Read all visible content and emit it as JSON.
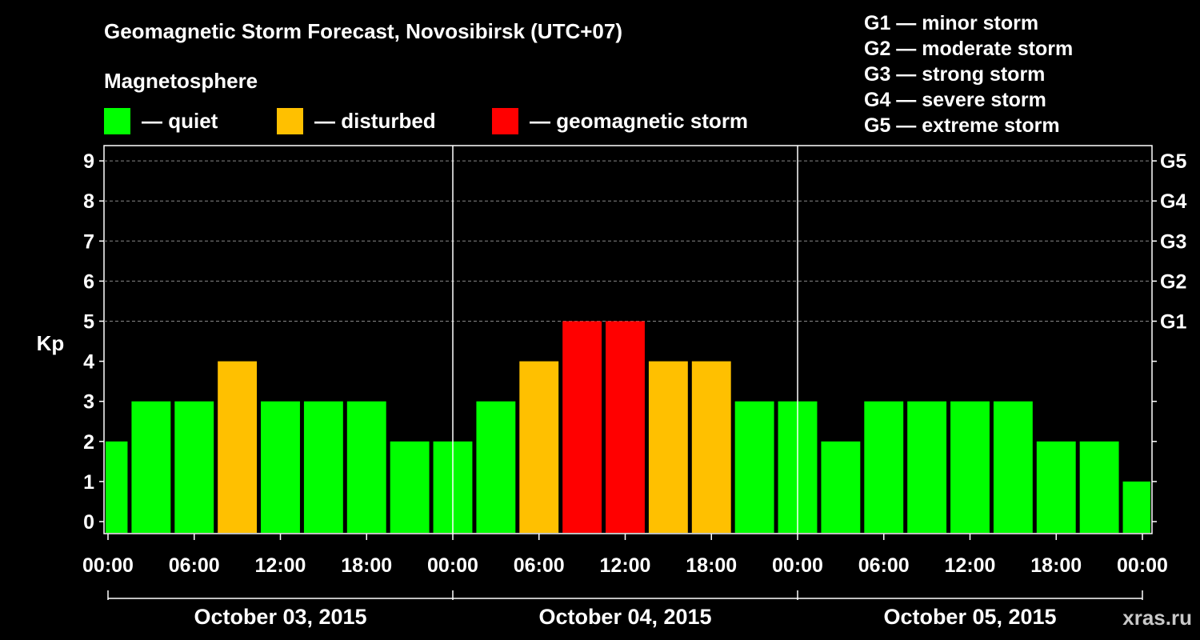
{
  "title": "Geomagnetic Storm Forecast, Novosibirsk (UTC+07)",
  "magnetosphere_label": "Magnetosphere",
  "legend": [
    {
      "label": "— quiet",
      "color": "#00ff00"
    },
    {
      "label": "— disturbed",
      "color": "#ffc000"
    },
    {
      "label": "— geomagnetic storm",
      "color": "#ff0000"
    }
  ],
  "storm_scale": [
    "G1 — minor storm",
    "G2 — moderate storm",
    "G3 — strong storm",
    "G4 — severe storm",
    "G5 — extreme storm"
  ],
  "watermark": "xras.ru",
  "chart_data": {
    "type": "bar",
    "ylabel": "Kp",
    "ylim": [
      0,
      9
    ],
    "y_ticks": [
      0,
      1,
      2,
      3,
      4,
      5,
      6,
      7,
      8,
      9
    ],
    "right_axis_labels": [
      {
        "kp": 5,
        "label": "G1"
      },
      {
        "kp": 6,
        "label": "G2"
      },
      {
        "kp": 7,
        "label": "G3"
      },
      {
        "kp": 8,
        "label": "G4"
      },
      {
        "kp": 9,
        "label": "G5"
      }
    ],
    "x_tick_labels": [
      "00:00",
      "06:00",
      "12:00",
      "18:00",
      "00:00",
      "06:00",
      "12:00",
      "18:00",
      "00:00",
      "06:00",
      "12:00",
      "18:00",
      "00:00"
    ],
    "days": [
      "October 03, 2015",
      "October 04, 2015",
      "October 05, 2015"
    ],
    "grid": "dashed horizontal at Kp 5-9",
    "bar_start_hour": -1.5,
    "bar_interval_hours": 3,
    "values": [
      2,
      3,
      3,
      4,
      3,
      3,
      3,
      2,
      2,
      3,
      4,
      5,
      5,
      4,
      4,
      3,
      3,
      2,
      3,
      3,
      3,
      3,
      2,
      2,
      1
    ],
    "colors": {
      "quiet": "#00ff00",
      "disturbed": "#ffc000",
      "storm": "#ff0000"
    }
  }
}
